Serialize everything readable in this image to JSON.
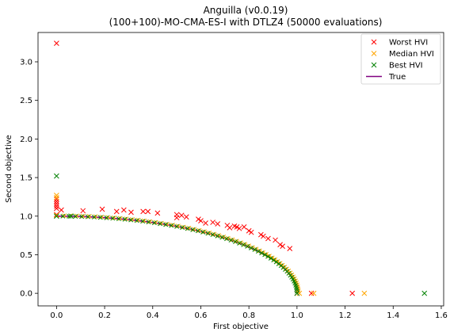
{
  "chart_data": {
    "type": "scatter",
    "title_lines": [
      "Anguilla (v0.0.19)",
      "(100+100)-MO-CMA-ES-I with DTLZ4 (50000 evaluations)"
    ],
    "xlabel": "First objective",
    "ylabel": "Second objective",
    "xlim": [
      -0.077,
      1.61
    ],
    "ylim": [
      -0.163,
      3.38
    ],
    "xticks": [
      0.0,
      0.2,
      0.4,
      0.6,
      0.8,
      1.0,
      1.2,
      1.4,
      1.6
    ],
    "xtick_labels": [
      "0.0",
      "0.2",
      "0.4",
      "0.6",
      "0.8",
      "1.0",
      "1.2",
      "1.4",
      "1.6"
    ],
    "yticks": [
      0.0,
      0.5,
      1.0,
      1.5,
      2.0,
      2.5,
      3.0
    ],
    "ytick_labels": [
      "0.0",
      "0.5",
      "1.0",
      "1.5",
      "2.0",
      "2.5",
      "3.0"
    ],
    "grid": false,
    "legend_position": "top-right",
    "series": [
      {
        "name": "Worst HVI",
        "marker": "x",
        "color": "#ff0000",
        "points": [
          [
            0.0,
            3.24
          ],
          [
            0.0,
            1.22
          ],
          [
            0.0,
            1.19
          ],
          [
            0.0,
            1.16
          ],
          [
            0.0,
            1.13
          ],
          [
            0.0,
            1.1
          ],
          [
            0.02,
            1.08
          ],
          [
            0.0,
            1.02
          ],
          [
            0.11,
            1.07
          ],
          [
            0.19,
            1.09
          ],
          [
            0.25,
            1.06
          ],
          [
            0.28,
            1.08
          ],
          [
            0.31,
            1.05
          ],
          [
            0.36,
            1.06
          ],
          [
            0.38,
            1.06
          ],
          [
            0.42,
            1.04
          ],
          [
            0.5,
            1.02
          ],
          [
            0.5,
            0.98
          ],
          [
            0.52,
            1.01
          ],
          [
            0.54,
            0.99
          ],
          [
            0.59,
            0.96
          ],
          [
            0.6,
            0.94
          ],
          [
            0.62,
            0.91
          ],
          [
            0.65,
            0.92
          ],
          [
            0.67,
            0.9
          ],
          [
            0.71,
            0.88
          ],
          [
            0.72,
            0.85
          ],
          [
            0.74,
            0.87
          ],
          [
            0.75,
            0.86
          ],
          [
            0.76,
            0.84
          ],
          [
            0.78,
            0.86
          ],
          [
            0.8,
            0.81
          ],
          [
            0.81,
            0.79
          ],
          [
            0.85,
            0.76
          ],
          [
            0.86,
            0.74
          ],
          [
            0.88,
            0.71
          ],
          [
            0.91,
            0.69
          ],
          [
            0.93,
            0.63
          ],
          [
            0.94,
            0.61
          ],
          [
            0.97,
            0.58
          ],
          [
            1.0,
            0.0
          ],
          [
            1.06,
            0.0
          ],
          [
            1.23,
            0.0
          ]
        ]
      },
      {
        "name": "Median HVI",
        "marker": "x",
        "color": "#ffa500",
        "points": [
          [
            0.0,
            1.27
          ],
          [
            0.0,
            1.24
          ],
          [
            0.0,
            1.01
          ],
          [
            1.07,
            0.0
          ],
          [
            1.28,
            0.0
          ],
          [
            1.01,
            0.0
          ]
        ]
      },
      {
        "name": "Best HVI",
        "marker": "x",
        "color": "#008000",
        "points": [
          [
            0.0,
            1.52
          ],
          [
            0.0,
            1.0
          ],
          [
            0.06,
            1.0
          ],
          [
            1.53,
            0.0
          ],
          [
            1.0,
            0.0
          ]
        ]
      },
      {
        "name": "True",
        "marker": "line",
        "color": "#800080"
      }
    ]
  }
}
